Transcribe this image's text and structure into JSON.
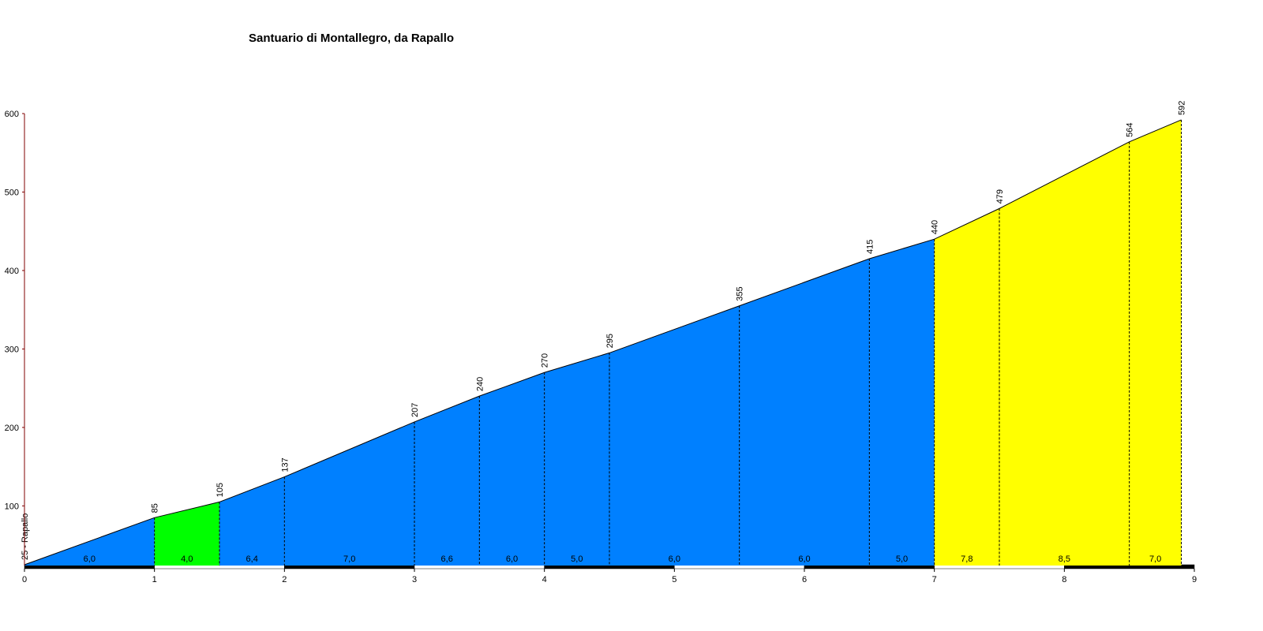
{
  "chart_data": {
    "type": "elevation-profile",
    "title": "Santuario di Montallegro, da Rapallo",
    "x": [
      0,
      1,
      1.5,
      2,
      3,
      3.5,
      4,
      4.5,
      5.5,
      6.5,
      7,
      7.5,
      8.5,
      8.9
    ],
    "values": [
      25,
      85,
      105,
      137,
      207,
      240,
      270,
      295,
      355,
      415,
      440,
      479,
      564,
      592
    ],
    "value_labels": [
      "25 - Rapallo",
      "85",
      "105",
      "137",
      "207",
      "240",
      "270",
      "295",
      "355",
      "415",
      "440",
      "479",
      "564",
      "592"
    ],
    "segments": {
      "values": [
        6.0,
        4.0,
        6.4,
        7.0,
        6.6,
        6.0,
        5.0,
        6.0,
        6.0,
        5.0,
        7.8,
        8.5,
        7.0
      ],
      "value_labels": [
        "6,0",
        "4,0",
        "6,4",
        "7,0",
        "6,6",
        "6,0",
        "5,0",
        "6,0",
        "6,0",
        "5,0",
        "7,8",
        "8,5",
        "7,0"
      ],
      "colors": [
        "#0080ff",
        "#00ff00",
        "#0080ff",
        "#0080ff",
        "#0080ff",
        "#0080ff",
        "#0080ff",
        "#0080ff",
        "#0080ff",
        "#0080ff",
        "#ffff00",
        "#ffff00",
        "#ffff00"
      ]
    },
    "xlim": [
      0,
      9
    ],
    "xticks": [
      0,
      1,
      2,
      3,
      4,
      5,
      6,
      7,
      8,
      9
    ],
    "ylim": [
      24,
      600
    ],
    "yticks": [
      100,
      200,
      300,
      400,
      500,
      600
    ]
  }
}
